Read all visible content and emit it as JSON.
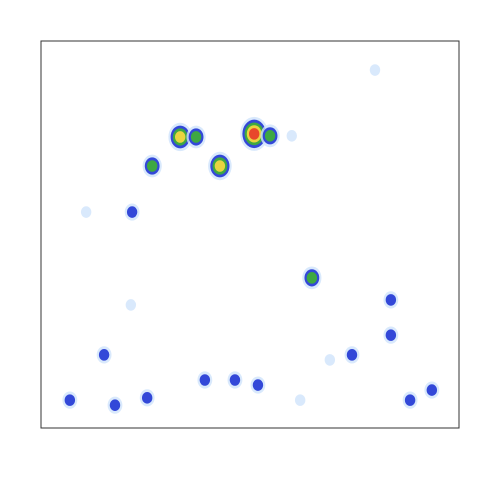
{
  "chart_data": {
    "type": "density",
    "xlim": [
      0,
      100
    ],
    "ylim": [
      0,
      100
    ],
    "x": [
      33.3,
      37.1,
      26.6,
      42.8,
      51.0,
      54.8,
      60.0,
      64.8,
      6.9,
      17.7,
      25.4,
      46.4,
      51.9,
      74.4,
      83.7,
      83.7,
      93.5,
      88.3,
      15.1,
      21.5,
      21.8,
      10.8,
      79.9,
      39.2,
      69.1,
      62.0
    ],
    "y": [
      75.2,
      75.2,
      67.7,
      67.7,
      76.0,
      75.5,
      75.5,
      38.8,
      7.2,
      5.9,
      7.8,
      12.4,
      11.1,
      18.9,
      24.0,
      33.1,
      9.8,
      7.2,
      18.9,
      31.8,
      55.8,
      55.8,
      92.5,
      12.4,
      17.6,
      7.2
    ],
    "values": [
      4,
      3,
      3,
      4,
      5,
      3,
      1,
      3,
      2,
      2,
      2,
      2,
      2,
      2,
      2,
      2,
      2,
      2,
      2,
      1,
      2,
      1,
      1,
      2,
      1,
      1
    ],
    "level_colors": [
      "#cfe4fb",
      "#2a3fd6",
      "#3fae3a",
      "#f2d640",
      "#e8402a"
    ]
  }
}
